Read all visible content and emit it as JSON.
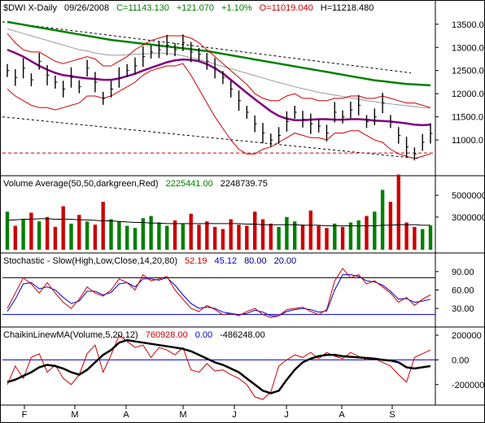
{
  "chart_data": [
    {
      "panel": "price",
      "type": "line",
      "header": {
        "symbol": "$DWI X-Daily",
        "date": "09/26/2008",
        "close": "C=11143.130",
        "change": "+121.070",
        "pct": "+1.10%",
        "open": "O=11019.040",
        "high": "H=11218.480"
      },
      "yticks": [
        11000,
        11500,
        12000,
        12500,
        13000,
        13500
      ],
      "ytick_labels": [
        "11000.0",
        "11500.0",
        "12000.0",
        "12500.0",
        "13000.0",
        "13500.0"
      ],
      "ylim": [
        10300,
        13900
      ],
      "xlabels": [
        "F",
        "M",
        "A",
        "M",
        "J",
        "J",
        "A",
        "S"
      ],
      "series": [
        {
          "name": "price",
          "color": "#000000",
          "values": [
            12500,
            12350,
            12550,
            12300,
            12700,
            12400,
            12250,
            12100,
            12350,
            12150,
            12550,
            12250,
            11900,
            12100,
            12350,
            12500,
            12600,
            12800,
            12900,
            12950,
            13050,
            12950,
            13100,
            12900,
            12850,
            12700,
            12550,
            12350,
            12100,
            11850,
            11600,
            11350,
            11150,
            11000,
            11100,
            11400,
            11600,
            11450,
            11350,
            11300,
            11150,
            11600,
            11500,
            11650,
            11750,
            11400,
            11500,
            11800,
            11400,
            11100,
            10850,
            10700,
            10950,
            11143
          ]
        },
        {
          "name": "ma50",
          "color": "#800080",
          "values": [
            12950,
            12880,
            12800,
            12700,
            12600,
            12520,
            12450,
            12400,
            12380,
            12350,
            12330,
            12320,
            12300,
            12300,
            12330,
            12380,
            12430,
            12500,
            12560,
            12620,
            12680,
            12720,
            12740,
            12730,
            12700,
            12640,
            12550,
            12440,
            12300,
            12160,
            12020,
            11880,
            11750,
            11620,
            11520,
            11460,
            11430,
            11430,
            11440,
            11450,
            11450,
            11440,
            11440,
            11450,
            11450,
            11440,
            11420,
            11410,
            11400,
            11380,
            11360,
            11330,
            11320,
            11330
          ]
        },
        {
          "name": "ma200",
          "color": "#008000",
          "values": [
            13550,
            13520,
            13490,
            13460,
            13430,
            13400,
            13370,
            13340,
            13310,
            13280,
            13250,
            13220,
            13190,
            13160,
            13140,
            13120,
            13100,
            13080,
            13060,
            13040,
            13020,
            13000,
            12980,
            12960,
            12940,
            12920,
            12890,
            12860,
            12830,
            12800,
            12770,
            12740,
            12710,
            12680,
            12650,
            12620,
            12590,
            12560,
            12530,
            12500,
            12470,
            12440,
            12410,
            12380,
            12350,
            12320,
            12290,
            12270,
            12250,
            12230,
            12210,
            12200,
            12190,
            12180
          ]
        },
        {
          "name": "ma100",
          "color": "#999999",
          "values": [
            13400,
            13350,
            13300,
            13250,
            13200,
            13150,
            13100,
            13050,
            13000,
            12950,
            12920,
            12880,
            12850,
            12830,
            12830,
            12840,
            12850,
            12860,
            12870,
            12880,
            12870,
            12850,
            12820,
            12780,
            12740,
            12690,
            12640,
            12590,
            12540,
            12490,
            12440,
            12390,
            12340,
            12290,
            12240,
            12200,
            12150,
            12110,
            12070,
            12030,
            12000,
            11970,
            11940,
            11910,
            11880,
            11850,
            11830,
            11800,
            11780,
            11760,
            11740,
            11720,
            11700,
            11690
          ]
        },
        {
          "name": "bb_upper",
          "color": "#cc0000",
          "values": [
            13300,
            13100,
            12950,
            12900,
            12900,
            12800,
            12700,
            12650,
            12700,
            12750,
            12800,
            12750,
            12600,
            12600,
            12700,
            12800,
            12950,
            13050,
            13150,
            13200,
            13250,
            13250,
            13250,
            13200,
            13100,
            12950,
            12800,
            12650,
            12500,
            12350,
            12200,
            12000,
            11900,
            11850,
            11850,
            11950,
            12000,
            11900,
            11900,
            11850,
            11850,
            11900,
            11900,
            11950,
            11950,
            11900,
            11900,
            11950,
            11900,
            11850,
            11800,
            11800,
            11750,
            11700
          ]
        },
        {
          "name": "bb_lower",
          "color": "#cc0000",
          "values": [
            12100,
            11950,
            11850,
            11750,
            11700,
            11700,
            11650,
            11700,
            11750,
            11800,
            11950,
            11950,
            11900,
            11950,
            12050,
            12150,
            12250,
            12400,
            12500,
            12550,
            12600,
            12600,
            12650,
            12400,
            12100,
            11800,
            11500,
            11250,
            11000,
            10800,
            10700,
            10700,
            10800,
            10850,
            10950,
            11050,
            11150,
            11100,
            11050,
            11050,
            11000,
            11150,
            11150,
            11200,
            11200,
            11100,
            11000,
            10950,
            10800,
            10700,
            10650,
            10600,
            10650,
            10700
          ]
        }
      ],
      "support_level": 10720
    },
    {
      "panel": "volume",
      "type": "bar",
      "title": "Volume Average(50,50,darkgreen,Red)",
      "val1": "2225441.00",
      "val2": "2248739.75",
      "yticks": [
        3000000,
        5000000
      ],
      "ytick_labels": [
        "3000000",
        "5000000"
      ],
      "ylim": [
        0,
        6500000
      ],
      "values": [
        3500,
        2200,
        2800,
        3400,
        2600,
        3000,
        2100,
        4000,
        2400,
        3200,
        2600,
        2300,
        4400,
        2800,
        2600,
        2200,
        2000,
        2900,
        3100,
        2500,
        2200,
        2700,
        2400,
        3300,
        2300,
        2600,
        2100,
        1900,
        2800,
        2300,
        2200,
        3500,
        2800,
        2400,
        2100,
        3000,
        2600,
        2300,
        3600,
        2200,
        2000,
        2400,
        2100,
        2500,
        2700,
        3100,
        3500,
        5500,
        4400,
        6900,
        2500,
        2100,
        1900,
        2225
      ],
      "avg": [
        2700,
        2750,
        2800,
        2800,
        2850,
        2850,
        2800,
        2800,
        2800,
        2750,
        2750,
        2700,
        2650,
        2650,
        2600,
        2550,
        2500,
        2500,
        2450,
        2450,
        2400,
        2400,
        2400,
        2400,
        2400,
        2400,
        2400,
        2400,
        2400,
        2400,
        2350,
        2350,
        2300,
        2300,
        2300,
        2300,
        2300,
        2250,
        2250,
        2250,
        2200,
        2200,
        2200,
        2200,
        2200,
        2200,
        2200,
        2250,
        2250,
        2300,
        2300,
        2300,
        2250,
        2250
      ]
    },
    {
      "panel": "stochastic",
      "type": "line",
      "title": "Stochastic - Slow(High,Low,Close,14,20,80)",
      "k": "52.19",
      "d": "45.12",
      "upper": "80.00",
      "lower": "20.00",
      "yticks": [
        30,
        60,
        90
      ],
      "ytick_labels": [
        "30.00",
        "60.00",
        "90.00"
      ],
      "ylim": [
        5,
        115
      ],
      "series": [
        {
          "name": "K",
          "color": "#cc0000",
          "values": [
            30,
            55,
            80,
            70,
            55,
            72,
            55,
            40,
            30,
            45,
            65,
            55,
            50,
            60,
            78,
            72,
            60,
            85,
            75,
            78,
            82,
            60,
            45,
            30,
            25,
            35,
            28,
            20,
            22,
            18,
            25,
            30,
            20,
            15,
            18,
            28,
            30,
            32,
            25,
            20,
            28,
            75,
            95,
            80,
            85,
            70,
            75,
            65,
            55,
            40,
            48,
            35,
            45,
            52
          ]
        },
        {
          "name": "D",
          "color": "#0000cc",
          "values": [
            25,
            45,
            70,
            72,
            62,
            65,
            60,
            48,
            38,
            42,
            58,
            58,
            52,
            56,
            70,
            72,
            65,
            78,
            78,
            76,
            80,
            68,
            52,
            38,
            30,
            32,
            30,
            24,
            22,
            20,
            22,
            27,
            24,
            18,
            18,
            25,
            28,
            30,
            28,
            24,
            26,
            60,
            85,
            85,
            82,
            75,
            73,
            68,
            58,
            45,
            46,
            40,
            42,
            45
          ]
        }
      ]
    },
    {
      "panel": "chaikin",
      "type": "line",
      "title": "ChaikinLinewMA(Volume,5,20,12)",
      "v1": "760928.00",
      "v2": "0.00",
      "v3": "-486248.00",
      "yticks": [
        -200000,
        0,
        200000
      ],
      "ytick_labels": [
        "-200000",
        "0.00",
        "200000"
      ],
      "ylim": [
        -340000,
        240000
      ],
      "series": [
        {
          "name": "chaikin",
          "color": "#cc0000",
          "values": [
            -200000,
            -50000,
            -150000,
            20000,
            50000,
            -100000,
            -40000,
            -150000,
            -200000,
            -120000,
            50000,
            120000,
            -100000,
            40000,
            200000,
            150000,
            100000,
            120000,
            20000,
            100000,
            80000,
            40000,
            100000,
            -80000,
            -100000,
            -30000,
            -90000,
            -80000,
            -120000,
            -150000,
            -200000,
            -300000,
            -320000,
            -260000,
            -50000,
            0,
            40000,
            20000,
            60000,
            10000,
            60000,
            30000,
            10000,
            60000,
            30000,
            0,
            10000,
            -20000,
            -50000,
            -120000,
            -180000,
            20000,
            50000,
            80000
          ]
        },
        {
          "name": "chaikin_ma",
          "color": "#000000",
          "values": [
            -180000,
            -160000,
            -130000,
            -100000,
            -60000,
            -40000,
            -50000,
            -70000,
            -100000,
            -120000,
            -80000,
            -20000,
            40000,
            80000,
            140000,
            160000,
            150000,
            140000,
            130000,
            120000,
            110000,
            100000,
            90000,
            70000,
            40000,
            10000,
            -20000,
            -40000,
            -70000,
            -100000,
            -150000,
            -200000,
            -250000,
            -270000,
            -250000,
            -160000,
            -80000,
            -20000,
            10000,
            30000,
            40000,
            40000,
            30000,
            25000,
            20000,
            15000,
            10000,
            0,
            -5000,
            -20000,
            -60000,
            -70000,
            -60000,
            -50000
          ]
        }
      ]
    }
  ]
}
